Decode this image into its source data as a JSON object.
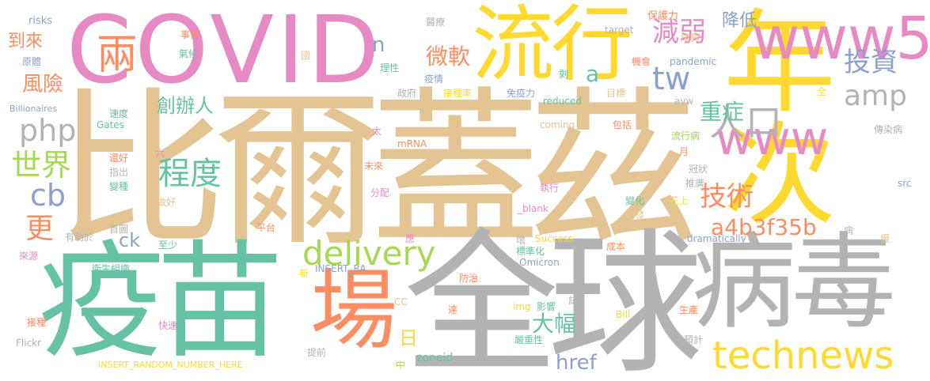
{
  "palette": {
    "tan": "#e5c494",
    "gray": "#b3b3b3",
    "teal": "#66c2a5",
    "orange": "#fc8d62",
    "blue": "#8da0cb",
    "pink": "#e78ac3",
    "green": "#a6d854",
    "yellow": "#ffd92f"
  },
  "words": [
    {
      "text": "比爾蓋茲",
      "color": "tan"
    },
    {
      "text": "COVID",
      "color": "pink"
    },
    {
      "text": "全球",
      "color": "gray"
    },
    {
      "text": "疫苗",
      "color": "teal"
    },
    {
      "text": "病毒",
      "color": "gray"
    },
    {
      "text": "年次",
      "color": "yellow"
    },
    {
      "text": "流行",
      "color": "yellow"
    },
    {
      "text": "場",
      "color": "orange"
    },
    {
      "text": "www5",
      "color": "pink"
    },
    {
      "text": "technews",
      "color": "yellow"
    },
    {
      "text": "www",
      "color": "pink"
    },
    {
      "text": "delivery",
      "color": "green"
    },
    {
      "text": "兩",
      "color": "orange"
    },
    {
      "text": "投資",
      "color": "blue"
    },
    {
      "text": "amp",
      "color": "gray"
    },
    {
      "text": "tw",
      "color": "blue"
    },
    {
      "text": "減弱",
      "color": "pink"
    },
    {
      "text": "人口",
      "color": "gray"
    },
    {
      "text": "php",
      "color": "gray"
    },
    {
      "text": "世界",
      "color": "green"
    },
    {
      "text": "程度",
      "color": "teal"
    },
    {
      "text": "技術",
      "color": "orange"
    },
    {
      "text": "cb",
      "color": "blue"
    },
    {
      "text": "a4b3f35b",
      "color": "orange"
    },
    {
      "text": "重症",
      "color": "teal"
    },
    {
      "text": "微軟",
      "color": "orange"
    },
    {
      "text": "更",
      "color": "orange"
    },
    {
      "text": "降低",
      "color": "blue"
    },
    {
      "text": "創辦人",
      "color": "teal"
    },
    {
      "text": "大幅",
      "color": "teal"
    },
    {
      "text": "href",
      "color": "blue"
    },
    {
      "text": "風險",
      "color": "orange"
    },
    {
      "text": "到來",
      "color": "orange"
    },
    {
      "text": "ck",
      "color": "blue"
    },
    {
      "text": "n",
      "color": "blue"
    },
    {
      "text": "a",
      "color": "teal"
    },
    {
      "text": "日",
      "color": "yellow"
    },
    {
      "text": "zoneid",
      "color": "teal"
    },
    {
      "text": "risks",
      "color": "blue"
    },
    {
      "text": "事情",
      "color": "orange"
    },
    {
      "text": "氣候",
      "color": "teal"
    },
    {
      "text": "醫療",
      "color": "gray"
    },
    {
      "text": "國",
      "color": "tan"
    },
    {
      "text": "理性",
      "color": "teal"
    },
    {
      "text": "疫情",
      "color": "blue"
    },
    {
      "text": "保護力",
      "color": "orange"
    },
    {
      "text": "成員",
      "color": "tan"
    },
    {
      "text": "target",
      "color": "gray"
    },
    {
      "text": "機會",
      "color": "orange"
    },
    {
      "text": "pandemic",
      "color": "blue"
    },
    {
      "text": "剩",
      "color": "teal"
    },
    {
      "text": "免疫力",
      "color": "blue"
    },
    {
      "text": "reduced",
      "color": "teal"
    },
    {
      "text": "目標",
      "color": "tan"
    },
    {
      "text": "avw",
      "color": "gray"
    },
    {
      "text": "全",
      "color": "yellow"
    },
    {
      "text": "原體",
      "color": "blue"
    },
    {
      "text": "Billionaires",
      "color": "blue"
    },
    {
      "text": "速度",
      "color": "teal"
    },
    {
      "text": "Gates",
      "color": "teal"
    },
    {
      "text": "政府",
      "color": "gray"
    },
    {
      "text": "接種率",
      "color": "yellow"
    },
    {
      "text": "coming",
      "color": "tan"
    },
    {
      "text": "包括",
      "color": "orange"
    },
    {
      "text": "流行病",
      "color": "green"
    },
    {
      "text": "傳染病",
      "color": "gray"
    },
    {
      "text": "月",
      "color": "orange"
    },
    {
      "text": "太",
      "color": "pink"
    },
    {
      "text": "mRNA",
      "color": "orange"
    },
    {
      "text": "還好",
      "color": "orange"
    },
    {
      "text": "指出",
      "color": "gray"
    },
    {
      "text": "變種",
      "color": "teal"
    },
    {
      "text": "未來",
      "color": "orange"
    },
    {
      "text": "冠狀",
      "color": "gray"
    },
    {
      "text": "推廣",
      "color": "gray"
    },
    {
      "text": "六",
      "color": "pink"
    },
    {
      "text": "分配",
      "color": "pink"
    },
    {
      "text": "執行",
      "color": "pink"
    },
    {
      "text": "花上",
      "color": "yellow"
    },
    {
      "text": "變化",
      "color": "teal"
    },
    {
      "text": "開發",
      "color": "tan"
    },
    {
      "text": "src",
      "color": "blue"
    },
    {
      "text": "做好",
      "color": "tan"
    },
    {
      "text": "_blank",
      "color": "pink"
    },
    {
      "text": "首圖",
      "color": "gray"
    },
    {
      "text": "平台",
      "color": "orange"
    },
    {
      "text": "有助於",
      "color": "gray"
    },
    {
      "text": "至少",
      "color": "teal"
    },
    {
      "text": "壞",
      "color": "gray"
    },
    {
      "text": "Success",
      "color": "yellow"
    },
    {
      "text": "dramatically",
      "color": "blue"
    },
    {
      "text": "病",
      "color": "gray"
    },
    {
      "text": "慢",
      "color": "tan"
    },
    {
      "text": "應",
      "color": "pink"
    },
    {
      "text": "標準化",
      "color": "teal"
    },
    {
      "text": "成本",
      "color": "orange"
    },
    {
      "text": "來源",
      "color": "pink"
    },
    {
      "text": "衛生組織",
      "color": "teal"
    },
    {
      "text": "INSERT_RA",
      "color": "blue"
    },
    {
      "text": "新",
      "color": "yellow"
    },
    {
      "text": "Omicron",
      "color": "blue"
    },
    {
      "text": "防治",
      "color": "orange"
    },
    {
      "text": "CC",
      "color": "tan"
    },
    {
      "text": "img",
      "color": "yellow"
    },
    {
      "text": "影響",
      "color": "teal"
    },
    {
      "text": "試",
      "color": "gray"
    },
    {
      "text": "達",
      "color": "orange"
    },
    {
      "text": "Bill",
      "color": "yellow"
    },
    {
      "text": "生產",
      "color": "orange"
    },
    {
      "text": "接種",
      "color": "orange"
    },
    {
      "text": "快速",
      "color": "pink"
    },
    {
      "text": "Flickr",
      "color": "gray"
    },
    {
      "text": "嚴重性",
      "color": "teal"
    },
    {
      "text": "預計",
      "color": "gray"
    },
    {
      "text": "提前",
      "color": "gray"
    },
    {
      "text": "INSERT_RANDOM_NUMBER_HERE",
      "color": "yellow"
    },
    {
      "text": "中",
      "color": "green"
    }
  ]
}
